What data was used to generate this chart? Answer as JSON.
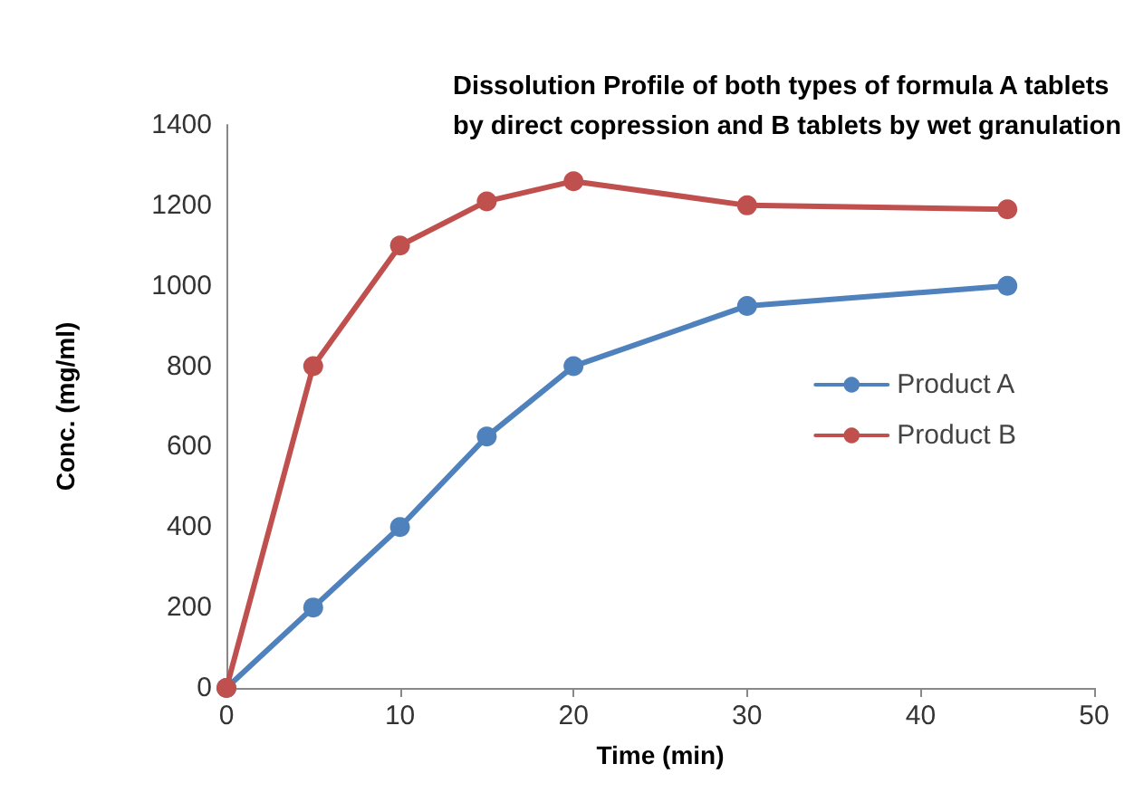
{
  "chart_data": {
    "type": "line",
    "title": "Dissolution Profile of both types of formula A tablets\nby direct copression and B tablets by wet granulation",
    "xlabel": "Time (min)",
    "ylabel": "Conc. (mg/ml)",
    "x": [
      0,
      5,
      10,
      15,
      20,
      30,
      45
    ],
    "series": [
      {
        "name": "Product A",
        "color": "#4f81bd",
        "values": [
          0,
          200,
          400,
          625,
          800,
          950,
          1000
        ]
      },
      {
        "name": "Product B",
        "color": "#c0504d",
        "values": [
          0,
          800,
          1100,
          1210,
          1260,
          1200,
          1190
        ]
      }
    ],
    "xlim": [
      0,
      50
    ],
    "xticks": [
      0,
      10,
      20,
      30,
      40,
      50
    ],
    "ylim": [
      0,
      1400
    ],
    "yticks": [
      0,
      200,
      400,
      600,
      800,
      1000,
      1200,
      1400
    ],
    "grid": false,
    "legend": "right",
    "marker": "circle",
    "line_style": "solid"
  }
}
